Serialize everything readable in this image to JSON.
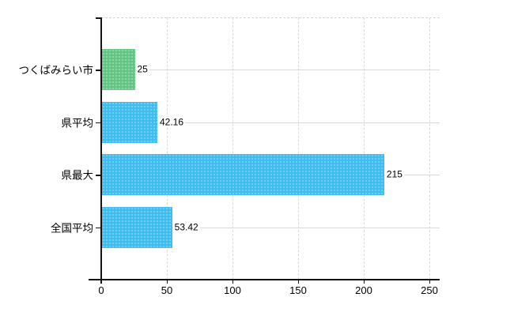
{
  "chart_data": {
    "type": "bar",
    "orientation": "horizontal",
    "title": "",
    "categories": [
      "つくばみらい市",
      "県平均",
      "県最大",
      "全国平均"
    ],
    "values": [
      25,
      42.16,
      215,
      53.42
    ],
    "value_labels": [
      "25",
      "42.16",
      "215",
      "53.42"
    ],
    "bar_colors": [
      "#65c584",
      "#3fbdee",
      "#3fbdee",
      "#3fbdee"
    ],
    "x_axis": {
      "min": 0,
      "max": 250,
      "ticks": [
        0,
        50,
        100,
        150,
        200,
        250
      ],
      "tick_labels": [
        "0",
        "50",
        "100",
        "150",
        "200",
        "250"
      ]
    },
    "grid": {
      "vertical": "dashed",
      "horizontal_row_lines": true,
      "top_border": "dashed"
    },
    "legend": "none"
  },
  "colors": {
    "axis": "#141414",
    "grid": "#d9d9d9",
    "text": "#000000",
    "background": "#ffffff",
    "bar_blue": "#3fbdee",
    "bar_green": "#65c584"
  }
}
